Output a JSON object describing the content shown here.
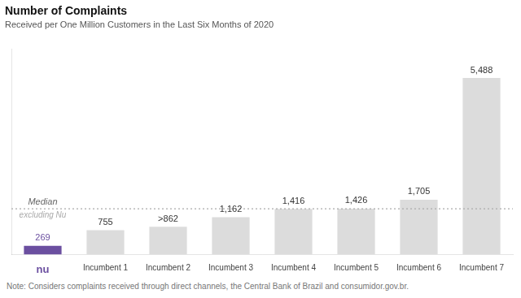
{
  "chart_data": {
    "type": "bar",
    "title": "Number of Complaints",
    "subtitle": "Received per One Million Customers in the Last Six Months of 2020",
    "note": "Note: Considers complaints received through direct channels, the Central Bank of Brazil and consumidor.gov.br.",
    "categories": [
      "nu",
      "Incumbent 1",
      "Incumbent 2",
      "Incumbent 3",
      "Incumbent 4",
      "Incumbent 5",
      "Incumbent 6",
      "Incumbent 7"
    ],
    "values": [
      269,
      755,
      862,
      1162,
      1416,
      1426,
      1705,
      5488
    ],
    "value_labels": [
      "269",
      "755",
      ">862",
      "1,162",
      "1,416",
      "1,426",
      "1,705",
      "5,488"
    ],
    "data_labels": true,
    "colors": [
      "#6B4FA0",
      "#DCDCDC",
      "#DCDCDC",
      "#DCDCDC",
      "#DCDCDC",
      "#DCDCDC",
      "#DCDCDC",
      "#DCDCDC"
    ],
    "ylim": [
      0,
      6400
    ],
    "grid": false,
    "tick_labels": "x",
    "annotations": [
      {
        "type": "hline",
        "y": 1421,
        "labels": [
          "Median",
          "excluding Nu"
        ],
        "color": "#AAAAAA",
        "line_style": "dotted"
      }
    ]
  }
}
